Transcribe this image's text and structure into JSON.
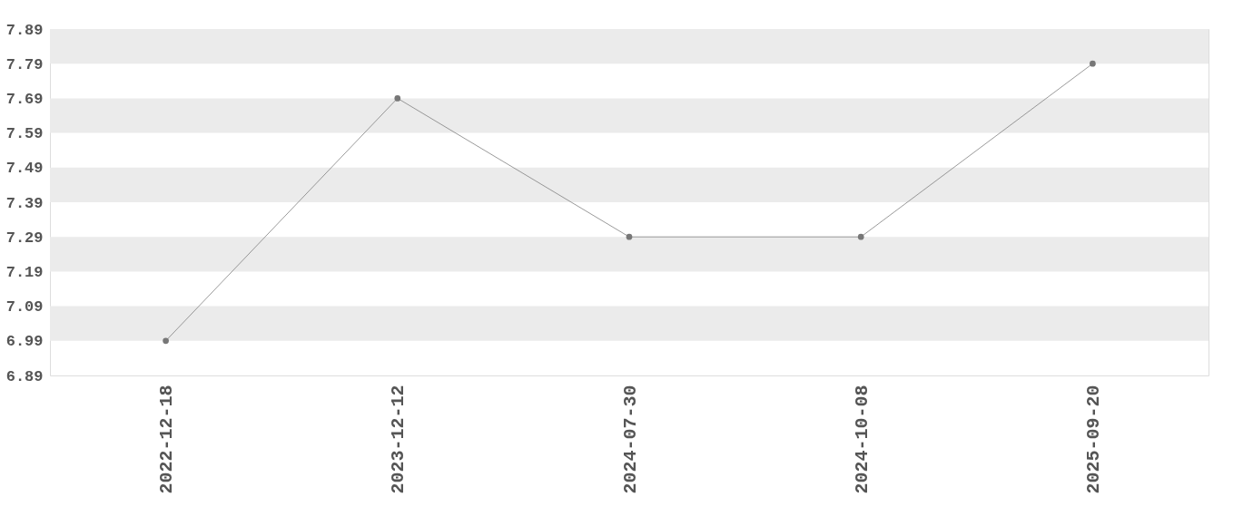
{
  "chart_data": {
    "type": "line",
    "categories": [
      "2022-12-18",
      "2023-12-12",
      "2024-07-30",
      "2024-10-08",
      "2025-09-20"
    ],
    "series": [
      {
        "color": "#808080",
        "values": [
          6.99,
          7.69,
          7.29,
          7.29,
          7.79
        ]
      }
    ],
    "ylim": [
      6.89,
      7.89
    ],
    "yticks": [
      6.89,
      6.99,
      7.09,
      7.19,
      7.29,
      7.39,
      7.49,
      7.59,
      7.69,
      7.79,
      7.89
    ],
    "bands": [
      {
        "axis": "y",
        "from": 7.79,
        "to": 7.89,
        "color": "#ebebeb"
      },
      {
        "axis": "y",
        "from": 7.59,
        "to": 7.69,
        "color": "#ebebeb"
      },
      {
        "axis": "y",
        "from": 7.39,
        "to": 7.49,
        "color": "#ebebeb"
      },
      {
        "axis": "y",
        "from": 7.19,
        "to": 7.29,
        "color": "#ebebeb"
      },
      {
        "axis": "y",
        "from": 6.99,
        "to": 7.09,
        "color": "#ebebeb"
      }
    ],
    "marker": "circle",
    "line_style": "solid",
    "grid": false
  }
}
